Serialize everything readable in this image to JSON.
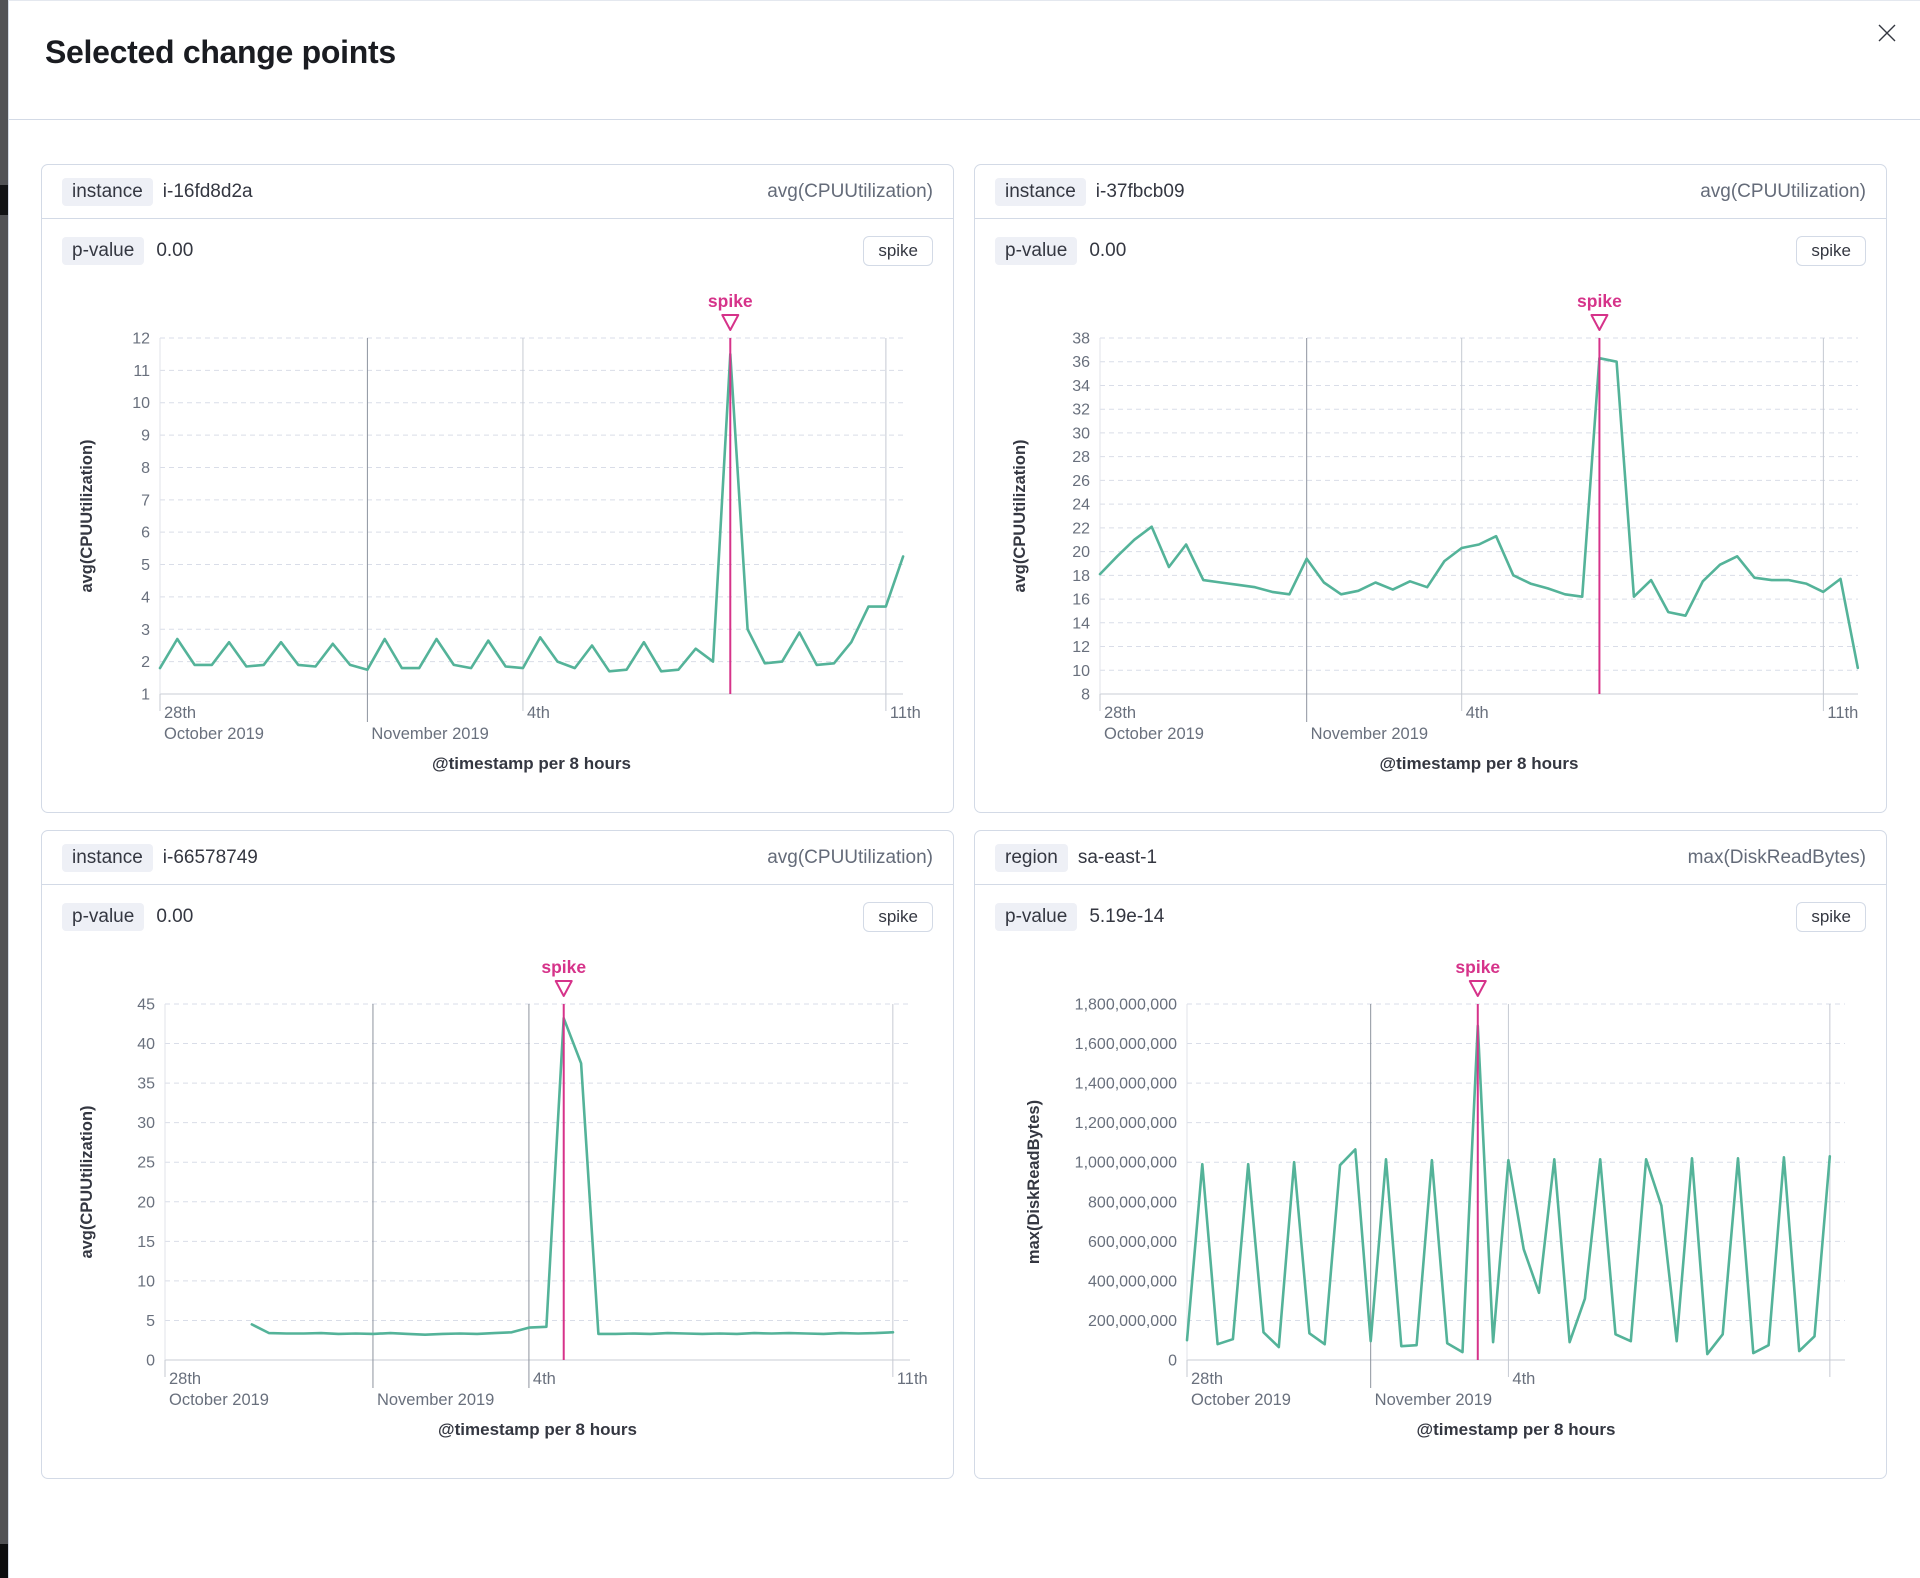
{
  "modal": {
    "title": "Selected change points"
  },
  "colors": {
    "series_green": "#54b399",
    "annotation_pink": "#d6338a",
    "panel_border": "#d3dae6",
    "grid_dashed": "#d9dde8",
    "axis_line": "#c9cdd6",
    "tick_dark": "#8d939e",
    "tick_light": "#c6cad2",
    "text_gray": "#69707d",
    "text_dark": "#343741"
  },
  "panels": [
    {
      "field_label": "instance",
      "field_value": "i-16fd8d2a",
      "metric_label": "avg(CPUUtilization)",
      "pvalue_label": "p-value",
      "pvalue_value": "0.00",
      "change_type": "spike"
    },
    {
      "field_label": "instance",
      "field_value": "i-37fbcb09",
      "metric_label": "avg(CPUUtilization)",
      "pvalue_label": "p-value",
      "pvalue_value": "0.00",
      "change_type": "spike"
    },
    {
      "field_label": "instance",
      "field_value": "i-66578749",
      "metric_label": "avg(CPUUtilization)",
      "pvalue_label": "p-value",
      "pvalue_value": "0.00",
      "change_type": "spike"
    },
    {
      "field_label": "region",
      "field_value": "sa-east-1",
      "metric_label": "max(DiskReadBytes)",
      "pvalue_label": "p-value",
      "pvalue_value": "5.19e-14",
      "change_type": "spike"
    }
  ],
  "chart_data": [
    {
      "type": "line",
      "y_axis_title": "avg(CPUUtilization)",
      "x_axis_title": "@timestamp per 8 hours",
      "annotation_label": "spike",
      "color": "#54b399",
      "y_min": 1,
      "y_max": 12,
      "y_step": 1,
      "y_format": "plain",
      "total_days": 14.33,
      "start_day": 0,
      "step_days": 0.3333,
      "x_ticks": [
        {
          "day": 0,
          "line": "edge",
          "labels": [
            "28th",
            "October 2019"
          ]
        },
        {
          "day": 4,
          "line": "dark",
          "labels": [
            "",
            "November 2019"
          ]
        },
        {
          "day": 7,
          "line": "light",
          "labels": [
            "4th",
            ""
          ]
        },
        {
          "day": 14,
          "line": "light",
          "labels": [
            "11th",
            ""
          ]
        }
      ],
      "values": [
        1.8,
        2.7,
        1.9,
        1.9,
        2.6,
        1.85,
        1.9,
        2.6,
        1.9,
        1.85,
        2.55,
        1.9,
        1.75,
        2.7,
        1.8,
        1.8,
        2.7,
        1.9,
        1.8,
        2.65,
        1.85,
        1.8,
        2.75,
        2.0,
        1.8,
        2.5,
        1.7,
        1.75,
        2.6,
        1.7,
        1.75,
        2.4,
        2.0,
        11.5,
        3.0,
        1.95,
        2.0,
        2.9,
        1.9,
        1.95,
        2.6,
        3.7,
        3.7,
        5.25
      ]
    },
    {
      "type": "line",
      "y_axis_title": "avg(CPUUtilization)",
      "x_axis_title": "@timestamp per 8 hours",
      "annotation_label": "spike",
      "color": "#54b399",
      "y_min": 8,
      "y_max": 38,
      "y_step": 2,
      "y_format": "plain",
      "total_days": 14.67,
      "start_day": 0,
      "step_days": 0.3333,
      "x_ticks": [
        {
          "day": 0,
          "line": "edge",
          "labels": [
            "28th",
            "October 2019"
          ]
        },
        {
          "day": 4,
          "line": "dark",
          "labels": [
            "",
            "November 2019"
          ]
        },
        {
          "day": 7,
          "line": "light",
          "labels": [
            "4th",
            ""
          ]
        },
        {
          "day": 14,
          "line": "light",
          "labels": [
            "11th",
            ""
          ]
        }
      ],
      "values": [
        18.1,
        19.6,
        21.0,
        22.1,
        18.7,
        20.6,
        17.6,
        17.4,
        17.2,
        17.0,
        16.6,
        16.4,
        19.4,
        17.4,
        16.4,
        16.7,
        17.4,
        16.8,
        17.5,
        17.0,
        19.2,
        20.3,
        20.6,
        21.3,
        18.0,
        17.3,
        16.9,
        16.4,
        16.2,
        36.3,
        36.0,
        16.2,
        17.6,
        14.9,
        14.6,
        17.5,
        18.9,
        19.6,
        17.8,
        17.6,
        17.6,
        17.3,
        16.6,
        17.7,
        10.2
      ]
    },
    {
      "type": "line",
      "y_axis_title": "avg(CPUUtilization)",
      "x_axis_title": "@timestamp per 8 hours",
      "annotation_label": "spike",
      "color": "#54b399",
      "y_min": 0,
      "y_max": 45,
      "y_step": 5,
      "y_format": "plain",
      "total_days": 14.33,
      "start_day": 1.67,
      "step_days": 0.3333,
      "x_ticks": [
        {
          "day": 0,
          "line": "edge",
          "labels": [
            "28th",
            "October 2019"
          ]
        },
        {
          "day": 4,
          "line": "dark",
          "labels": [
            "",
            "November 2019"
          ]
        },
        {
          "day": 7,
          "line": "dark",
          "labels": [
            "4th",
            ""
          ]
        },
        {
          "day": 14,
          "line": "light",
          "labels": [
            "11th",
            ""
          ]
        }
      ],
      "values": [
        4.5,
        3.4,
        3.35,
        3.35,
        3.4,
        3.3,
        3.35,
        3.3,
        3.4,
        3.3,
        3.2,
        3.3,
        3.35,
        3.3,
        3.4,
        3.5,
        4.1,
        4.2,
        43.2,
        37.5,
        3.3,
        3.3,
        3.35,
        3.3,
        3.4,
        3.35,
        3.3,
        3.35,
        3.3,
        3.4,
        3.35,
        3.4,
        3.35,
        3.3,
        3.4,
        3.35,
        3.4,
        3.5
      ]
    },
    {
      "type": "line",
      "y_axis_title": "max(DiskReadBytes)",
      "x_axis_title": "@timestamp per 8 hours",
      "annotation_label": "spike",
      "color": "#54b399",
      "y_min": 0,
      "y_max": 1800000000,
      "y_step": 200000000,
      "y_format": "comma",
      "total_days": 14.33,
      "start_day": 0,
      "step_days": 0.3333,
      "x_ticks": [
        {
          "day": 0,
          "line": "edge",
          "labels": [
            "28th",
            "October 2019"
          ]
        },
        {
          "day": 4,
          "line": "dark",
          "labels": [
            "",
            "November 2019"
          ]
        },
        {
          "day": 7,
          "line": "light",
          "labels": [
            "4th",
            ""
          ]
        },
        {
          "day": 14,
          "line": "light",
          "labels": [
            "",
            ""
          ]
        }
      ],
      "values": [
        100000000,
        990000000,
        80000000,
        105000000,
        990000000,
        140000000,
        65000000,
        1000000000,
        135000000,
        80000000,
        985000000,
        1065000000,
        95000000,
        1015000000,
        70000000,
        75000000,
        1010000000,
        85000000,
        40000000,
        1690000000,
        90000000,
        1010000000,
        560000000,
        340000000,
        1015000000,
        90000000,
        310000000,
        1015000000,
        130000000,
        95000000,
        1015000000,
        780000000,
        95000000,
        1020000000,
        30000000,
        130000000,
        1020000000,
        35000000,
        75000000,
        1025000000,
        45000000,
        120000000,
        1030000000
      ]
    }
  ]
}
